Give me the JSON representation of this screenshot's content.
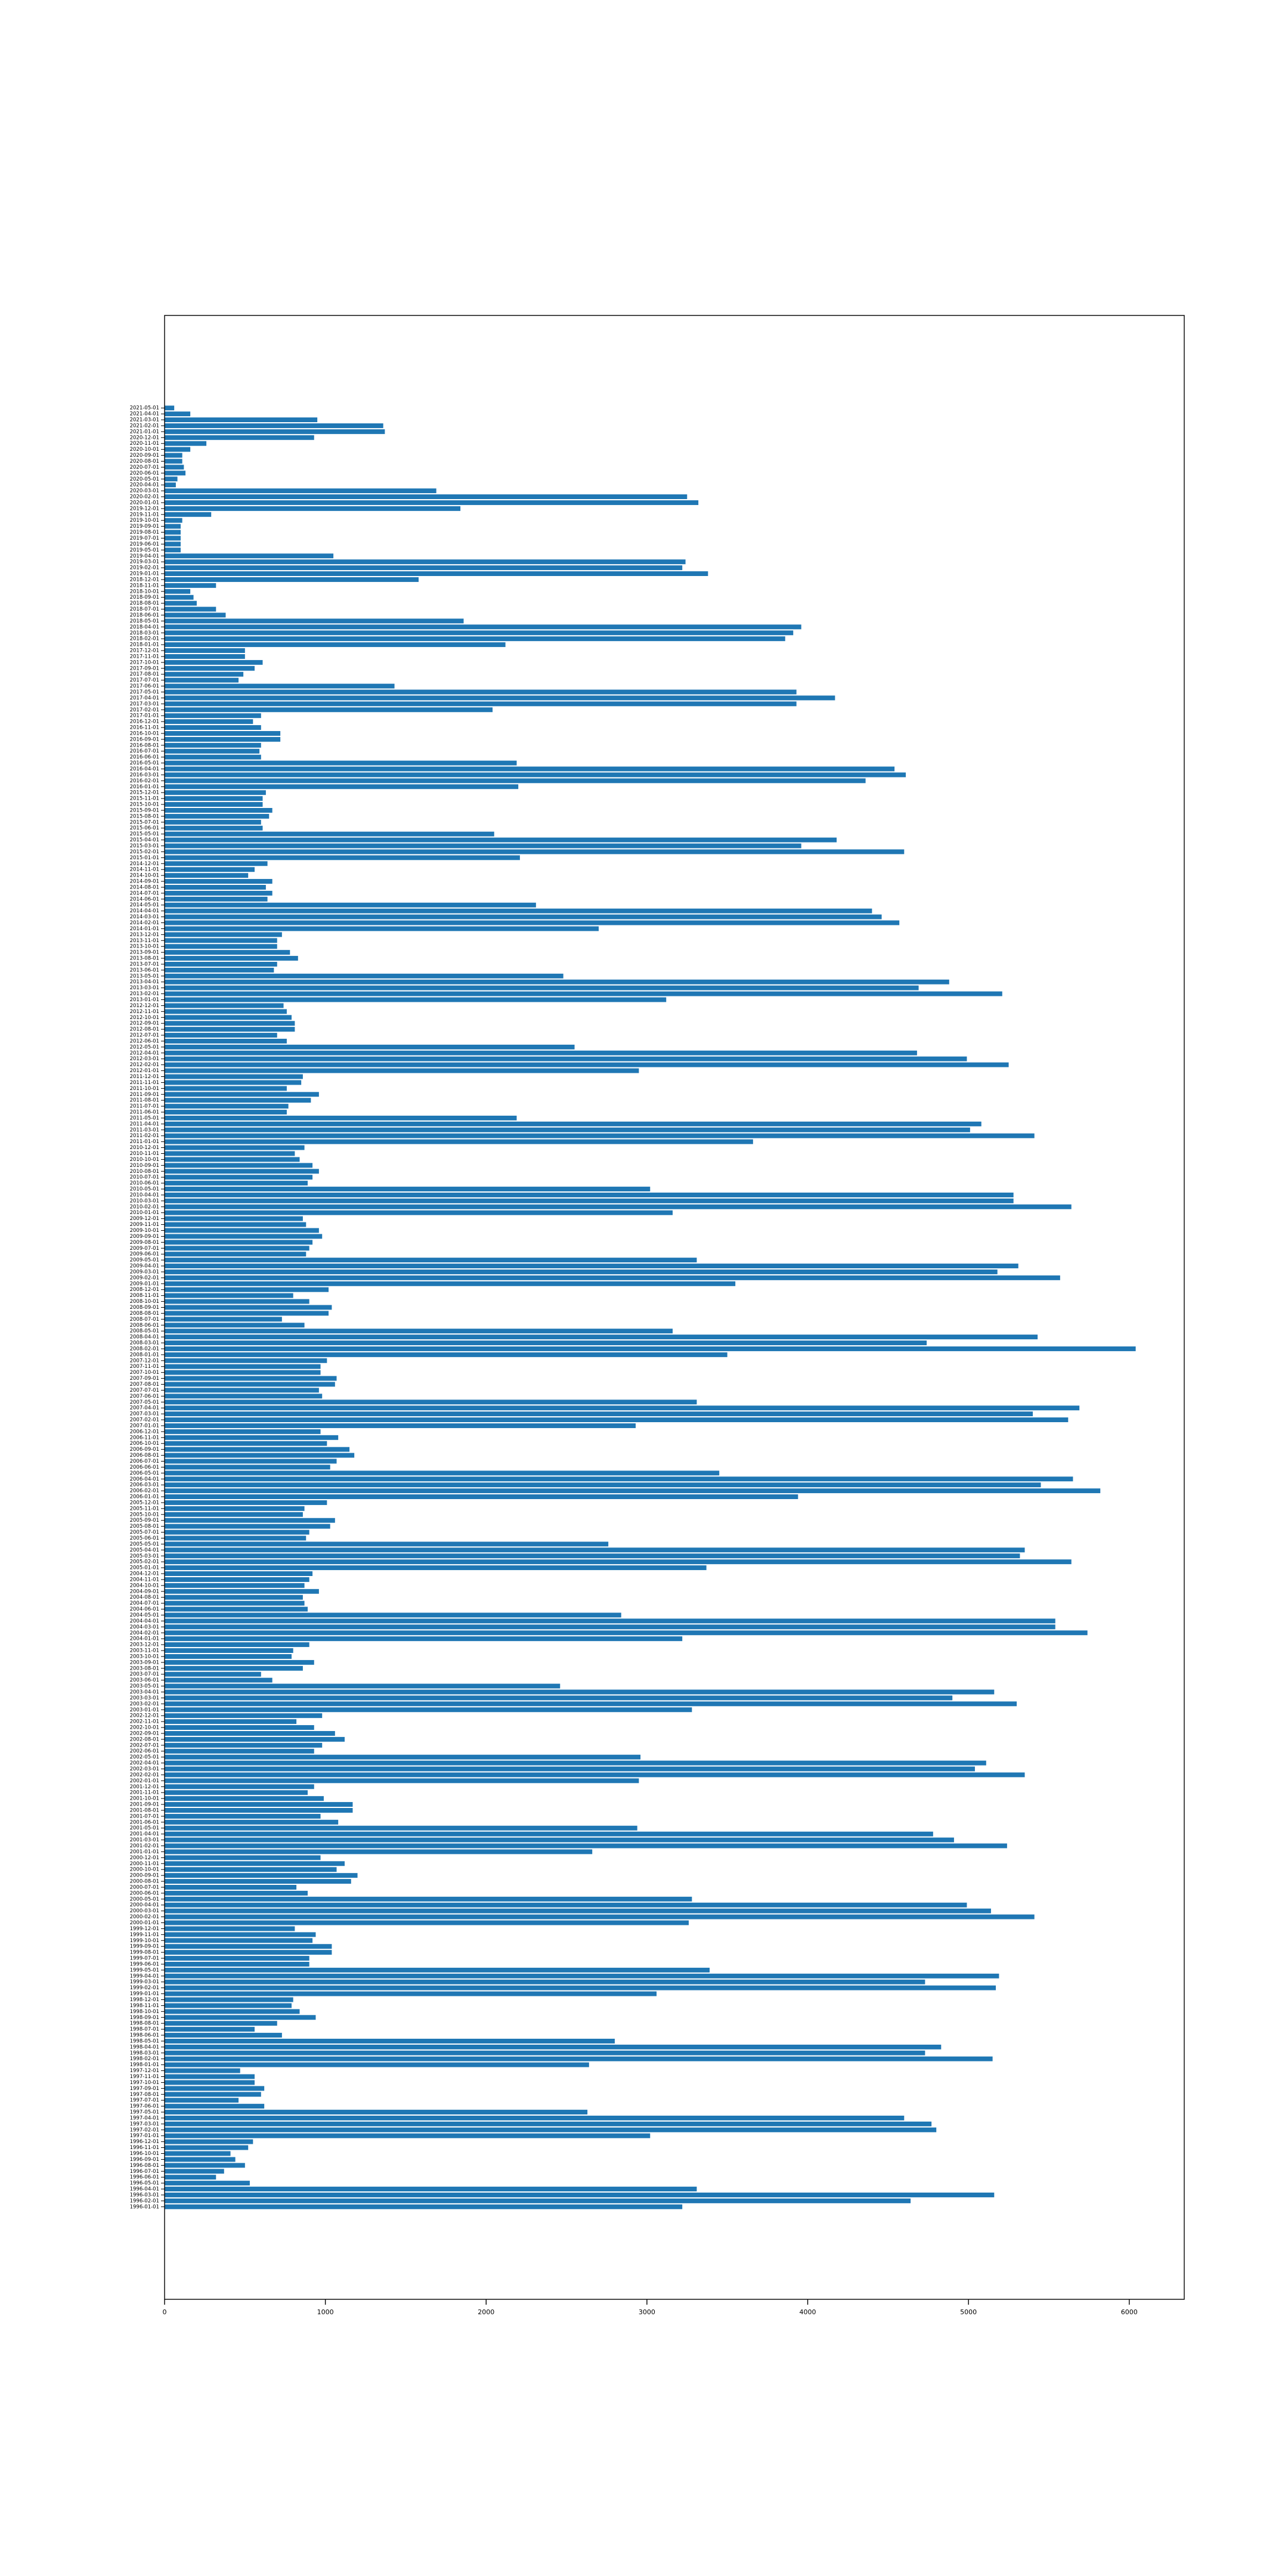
{
  "chart_data": {
    "type": "barh",
    "color": "#1f77b4",
    "categories": [
      "1996-01-01",
      "1996-02-01",
      "1996-03-01",
      "1996-04-01",
      "1996-05-01",
      "1996-06-01",
      "1996-07-01",
      "1996-08-01",
      "1996-09-01",
      "1996-10-01",
      "1996-11-01",
      "1996-12-01",
      "1997-01-01",
      "1997-02-01",
      "1997-03-01",
      "1997-04-01",
      "1997-05-01",
      "1997-06-01",
      "1997-07-01",
      "1997-08-01",
      "1997-09-01",
      "1997-10-01",
      "1997-11-01",
      "1997-12-01",
      "1998-01-01",
      "1998-02-01",
      "1998-03-01",
      "1998-04-01",
      "1998-05-01",
      "1998-06-01",
      "1998-07-01",
      "1998-08-01",
      "1998-09-01",
      "1998-10-01",
      "1998-11-01",
      "1998-12-01",
      "1999-01-01",
      "1999-02-01",
      "1999-03-01",
      "1999-04-01",
      "1999-05-01",
      "1999-06-01",
      "1999-07-01",
      "1999-08-01",
      "1999-09-01",
      "1999-10-01",
      "1999-11-01",
      "1999-12-01",
      "2000-01-01",
      "2000-02-01",
      "2000-03-01",
      "2000-04-01",
      "2000-05-01",
      "2000-06-01",
      "2000-07-01",
      "2000-08-01",
      "2000-09-01",
      "2000-10-01",
      "2000-11-01",
      "2000-12-01",
      "2001-01-01",
      "2001-02-01",
      "2001-03-01",
      "2001-04-01",
      "2001-05-01",
      "2001-06-01",
      "2001-07-01",
      "2001-08-01",
      "2001-09-01",
      "2001-10-01",
      "2001-11-01",
      "2001-12-01",
      "2002-01-01",
      "2002-02-01",
      "2002-03-01",
      "2002-04-01",
      "2002-05-01",
      "2002-06-01",
      "2002-07-01",
      "2002-08-01",
      "2002-09-01",
      "2002-10-01",
      "2002-11-01",
      "2002-12-01",
      "2003-01-01",
      "2003-02-01",
      "2003-03-01",
      "2003-04-01",
      "2003-05-01",
      "2003-06-01",
      "2003-07-01",
      "2003-08-01",
      "2003-09-01",
      "2003-10-01",
      "2003-11-01",
      "2003-12-01",
      "2004-01-01",
      "2004-02-01",
      "2004-03-01",
      "2004-04-01",
      "2004-05-01",
      "2004-06-01",
      "2004-07-01",
      "2004-08-01",
      "2004-09-01",
      "2004-10-01",
      "2004-11-01",
      "2004-12-01",
      "2005-01-01",
      "2005-02-01",
      "2005-03-01",
      "2005-04-01",
      "2005-05-01",
      "2005-06-01",
      "2005-07-01",
      "2005-08-01",
      "2005-09-01",
      "2005-10-01",
      "2005-11-01",
      "2005-12-01",
      "2006-01-01",
      "2006-02-01",
      "2006-03-01",
      "2006-04-01",
      "2006-05-01",
      "2006-06-01",
      "2006-07-01",
      "2006-08-01",
      "2006-09-01",
      "2006-10-01",
      "2006-11-01",
      "2006-12-01",
      "2007-01-01",
      "2007-02-01",
      "2007-03-01",
      "2007-04-01",
      "2007-05-01",
      "2007-06-01",
      "2007-07-01",
      "2007-08-01",
      "2007-09-01",
      "2007-10-01",
      "2007-11-01",
      "2007-12-01",
      "2008-01-01",
      "2008-02-01",
      "2008-03-01",
      "2008-04-01",
      "2008-05-01",
      "2008-06-01",
      "2008-07-01",
      "2008-08-01",
      "2008-09-01",
      "2008-10-01",
      "2008-11-01",
      "2008-12-01",
      "2009-01-01",
      "2009-02-01",
      "2009-03-01",
      "2009-04-01",
      "2009-05-01",
      "2009-06-01",
      "2009-07-01",
      "2009-08-01",
      "2009-09-01",
      "2009-10-01",
      "2009-11-01",
      "2009-12-01",
      "2010-01-01",
      "2010-02-01",
      "2010-03-01",
      "2010-04-01",
      "2010-05-01",
      "2010-06-01",
      "2010-07-01",
      "2010-08-01",
      "2010-09-01",
      "2010-10-01",
      "2010-11-01",
      "2010-12-01",
      "2011-01-01",
      "2011-02-01",
      "2011-03-01",
      "2011-04-01",
      "2011-05-01",
      "2011-06-01",
      "2011-07-01",
      "2011-08-01",
      "2011-09-01",
      "2011-10-01",
      "2011-11-01",
      "2011-12-01",
      "2012-01-01",
      "2012-02-01",
      "2012-03-01",
      "2012-04-01",
      "2012-05-01",
      "2012-06-01",
      "2012-07-01",
      "2012-08-01",
      "2012-09-01",
      "2012-10-01",
      "2012-11-01",
      "2012-12-01",
      "2013-01-01",
      "2013-02-01",
      "2013-03-01",
      "2013-04-01",
      "2013-05-01",
      "2013-06-01",
      "2013-07-01",
      "2013-08-01",
      "2013-09-01",
      "2013-10-01",
      "2013-11-01",
      "2013-12-01",
      "2014-01-01",
      "2014-02-01",
      "2014-03-01",
      "2014-04-01",
      "2014-05-01",
      "2014-06-01",
      "2014-07-01",
      "2014-08-01",
      "2014-09-01",
      "2014-10-01",
      "2014-11-01",
      "2014-12-01",
      "2015-01-01",
      "2015-02-01",
      "2015-03-01",
      "2015-04-01",
      "2015-05-01",
      "2015-06-01",
      "2015-07-01",
      "2015-08-01",
      "2015-09-01",
      "2015-10-01",
      "2015-11-01",
      "2015-12-01",
      "2016-01-01",
      "2016-02-01",
      "2016-03-01",
      "2016-04-01",
      "2016-05-01",
      "2016-06-01",
      "2016-07-01",
      "2016-08-01",
      "2016-09-01",
      "2016-10-01",
      "2016-11-01",
      "2016-12-01",
      "2017-01-01",
      "2017-02-01",
      "2017-03-01",
      "2017-04-01",
      "2017-05-01",
      "2017-06-01",
      "2017-07-01",
      "2017-08-01",
      "2017-09-01",
      "2017-10-01",
      "2017-11-01",
      "2017-12-01",
      "2018-01-01",
      "2018-02-01",
      "2018-03-01",
      "2018-04-01",
      "2018-05-01",
      "2018-06-01",
      "2018-07-01",
      "2018-08-01",
      "2018-09-01",
      "2018-10-01",
      "2018-11-01",
      "2018-12-01",
      "2019-01-01",
      "2019-02-01",
      "2019-03-01",
      "2019-04-01",
      "2019-05-01",
      "2019-06-01",
      "2019-07-01",
      "2019-08-01",
      "2019-09-01",
      "2019-10-01",
      "2019-11-01",
      "2019-12-01",
      "2020-01-01",
      "2020-02-01",
      "2020-03-01",
      "2020-04-01",
      "2020-05-01",
      "2020-06-01",
      "2020-07-01",
      "2020-08-01",
      "2020-09-01",
      "2020-10-01",
      "2020-11-01",
      "2020-12-01",
      "2021-01-01",
      "2021-02-01",
      "2021-03-01",
      "2021-04-01",
      "2021-05-01"
    ],
    "values": [
      3220,
      4640,
      5160,
      3310,
      530,
      320,
      370,
      500,
      440,
      410,
      520,
      550,
      3020,
      4800,
      4770,
      4600,
      2630,
      620,
      460,
      600,
      620,
      560,
      560,
      470,
      2640,
      5150,
      4730,
      4830,
      2800,
      730,
      560,
      700,
      940,
      840,
      790,
      800,
      3060,
      5170,
      4730,
      5190,
      3390,
      900,
      900,
      1040,
      1040,
      920,
      940,
      810,
      3260,
      5410,
      5140,
      4990,
      3280,
      890,
      820,
      1160,
      1200,
      1070,
      1120,
      970,
      2660,
      5240,
      4910,
      4780,
      2940,
      1080,
      970,
      1170,
      1170,
      990,
      890,
      930,
      2950,
      5350,
      5040,
      5110,
      2960,
      930,
      980,
      1120,
      1060,
      930,
      820,
      980,
      3280,
      5300,
      4900,
      5160,
      2460,
      670,
      600,
      860,
      930,
      790,
      800,
      900,
      3220,
      5740,
      5540,
      5540,
      2840,
      890,
      870,
      860,
      960,
      870,
      900,
      920,
      3370,
      5640,
      5320,
      5350,
      2760,
      880,
      900,
      1030,
      1060,
      860,
      870,
      1010,
      3940,
      5820,
      5450,
      5650,
      3450,
      1030,
      1070,
      1180,
      1150,
      1010,
      1080,
      970,
      2930,
      5620,
      5400,
      5690,
      3310,
      980,
      960,
      1060,
      1070,
      970,
      970,
      1010,
      3500,
      6040,
      4740,
      5430,
      3160,
      870,
      730,
      1020,
      1040,
      900,
      800,
      1020,
      3550,
      5570,
      5180,
      5310,
      3310,
      880,
      900,
      920,
      980,
      960,
      880,
      860,
      3160,
      5640,
      5280,
      5280,
      3020,
      890,
      920,
      960,
      920,
      840,
      810,
      870,
      3660,
      5410,
      5010,
      5080,
      2190,
      760,
      770,
      910,
      960,
      760,
      850,
      860,
      2950,
      5250,
      4990,
      4680,
      2550,
      760,
      700,
      810,
      810,
      790,
      760,
      740,
      3120,
      5210,
      4690,
      4880,
      2480,
      680,
      700,
      830,
      780,
      700,
      700,
      730,
      2700,
      4570,
      4460,
      4400,
      2310,
      640,
      670,
      630,
      670,
      520,
      560,
      640,
      2210,
      4600,
      3960,
      4180,
      2050,
      610,
      600,
      650,
      670,
      610,
      610,
      630,
      2200,
      4360,
      4610,
      4540,
      2190,
      600,
      590,
      600,
      720,
      720,
      600,
      550,
      600,
      2040,
      3930,
      4170,
      3930,
      1430,
      460,
      490,
      560,
      610,
      500,
      500,
      2120,
      3860,
      3910,
      3960,
      1860,
      380,
      320,
      200,
      180,
      160,
      320,
      1580,
      3380,
      3220,
      3240,
      1050,
      100,
      100,
      100,
      100,
      100,
      110,
      290,
      1840,
      3320,
      3250,
      1690,
      70,
      80,
      130,
      120,
      110,
      110,
      160,
      260,
      930,
      1370,
      1360,
      950,
      160,
      60
    ],
    "xlim": [
      0,
      6342
    ],
    "xticks": [
      0,
      1000,
      2000,
      3000,
      4000,
      5000,
      6000
    ]
  }
}
